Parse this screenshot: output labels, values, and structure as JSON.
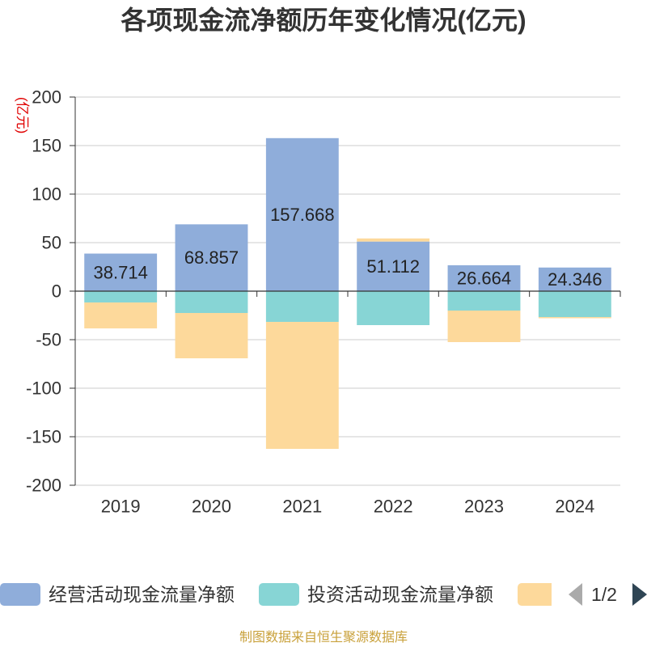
{
  "chart_data": {
    "type": "bar",
    "stacked": true,
    "title": "各项现金流净额历年变化情况(亿元)",
    "xlabel": "",
    "ylabel": "(亿元)",
    "categories": [
      "2019",
      "2020",
      "2021",
      "2022",
      "2023",
      "2024"
    ],
    "ylim": [
      -200,
      200
    ],
    "yticks": [
      200,
      150,
      100,
      50,
      0,
      -50,
      -100,
      -150,
      -200
    ],
    "grid": true,
    "legend_position": "bottom",
    "series": [
      {
        "name": "经营活动现金流量净额",
        "color": "#8fadda",
        "show_labels": true,
        "values": [
          38.714,
          68.857,
          157.668,
          51.112,
          26.664,
          24.346
        ]
      },
      {
        "name": "投资活动现金流量净额",
        "color": "#87d5d5",
        "show_labels": false,
        "values": [
          -11.7,
          -22.5,
          -31.7,
          -35.0,
          -20.0,
          -26.7
        ]
      },
      {
        "name": "",
        "color": "#fdd99b",
        "show_labels": false,
        "values": [
          -26.7,
          -46.7,
          -130.8,
          3.2,
          -32.5,
          -1.2
        ]
      }
    ]
  },
  "legend": {
    "page_indicator": "1/2",
    "prev_icon": "triangle-left-icon",
    "next_icon": "triangle-right-icon"
  },
  "footer": "制图数据来自恒生聚源数据库"
}
